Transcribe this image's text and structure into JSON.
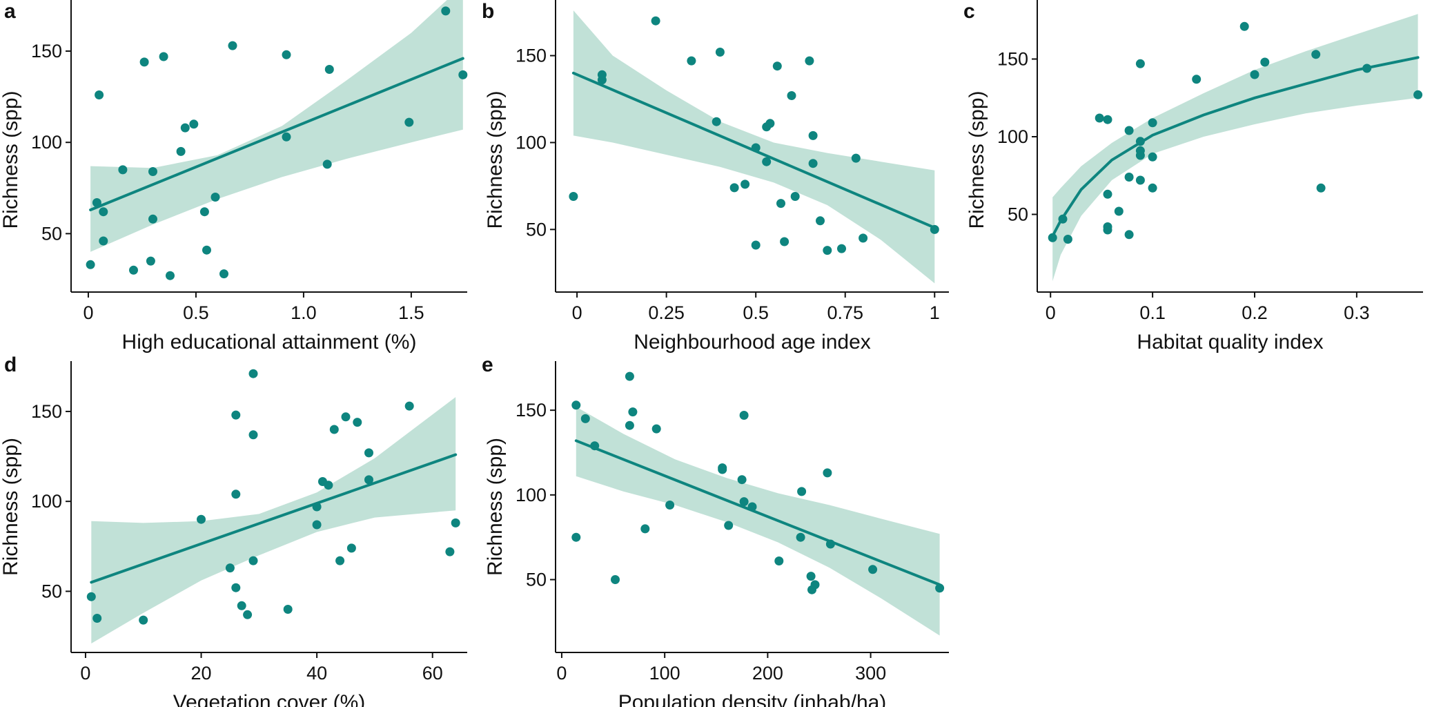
{
  "figure": {
    "point_color": "#0e857f",
    "line_color": "#0e857f",
    "band_color": "#c1e1d7"
  },
  "chart_data": [
    {
      "type": "scatter",
      "label": "a",
      "xlabel": "High educational attainment (%)",
      "ylabel": "Richness (spp)",
      "xlim": [
        -0.08,
        1.76
      ],
      "ylim": [
        18,
        178
      ],
      "xticks": [
        0,
        0.5,
        1.0,
        1.5
      ],
      "xtick_labels": [
        "0",
        "0.5",
        "1.0",
        "1.5"
      ],
      "yticks": [
        50,
        100,
        150
      ],
      "ytick_labels": [
        "50",
        "100",
        "150"
      ],
      "points": [
        [
          0.01,
          33
        ],
        [
          0.04,
          67
        ],
        [
          0.05,
          126
        ],
        [
          0.07,
          62
        ],
        [
          0.07,
          46
        ],
        [
          0.16,
          85
        ],
        [
          0.21,
          30
        ],
        [
          0.26,
          144
        ],
        [
          0.29,
          35
        ],
        [
          0.3,
          84
        ],
        [
          0.3,
          58
        ],
        [
          0.35,
          147
        ],
        [
          0.38,
          27
        ],
        [
          0.43,
          95
        ],
        [
          0.45,
          108
        ],
        [
          0.49,
          110
        ],
        [
          0.54,
          62
        ],
        [
          0.55,
          41
        ],
        [
          0.59,
          70
        ],
        [
          0.63,
          28
        ],
        [
          0.67,
          153
        ],
        [
          0.92,
          148
        ],
        [
          0.92,
          103
        ],
        [
          1.11,
          88
        ],
        [
          1.12,
          140
        ],
        [
          1.49,
          111
        ],
        [
          1.66,
          172
        ],
        [
          1.74,
          137
        ]
      ],
      "fit": {
        "kind": "linear",
        "x": [
          0.01,
          1.74
        ],
        "y": [
          63,
          146
        ]
      },
      "band": {
        "x": [
          0.01,
          0.3,
          0.6,
          0.9,
          1.2,
          1.5,
          1.74
        ],
        "lower": [
          40,
          55,
          69,
          81,
          91,
          100,
          107
        ],
        "upper": [
          87,
          86,
          93,
          109,
          134,
          160,
          186
        ]
      }
    },
    {
      "type": "scatter",
      "label": "b",
      "xlabel": "Neighbourhood age index",
      "ylabel": "Richness (spp)",
      "xlim": [
        -0.06,
        1.04
      ],
      "ylim": [
        14,
        182
      ],
      "xticks": [
        0,
        0.25,
        0.5,
        0.75,
        1
      ],
      "xtick_labels": [
        "0",
        "0.25",
        "0.5",
        "0.75",
        "1"
      ],
      "yticks": [
        50,
        100,
        150
      ],
      "ytick_labels": [
        "50",
        "100",
        "150"
      ],
      "points": [
        [
          -0.01,
          69
        ],
        [
          0.07,
          136
        ],
        [
          0.07,
          139
        ],
        [
          0.22,
          170
        ],
        [
          0.32,
          147
        ],
        [
          0.39,
          112
        ],
        [
          0.4,
          152
        ],
        [
          0.44,
          74
        ],
        [
          0.47,
          76
        ],
        [
          0.5,
          41
        ],
        [
          0.5,
          97
        ],
        [
          0.53,
          89
        ],
        [
          0.53,
          109
        ],
        [
          0.54,
          111
        ],
        [
          0.56,
          144
        ],
        [
          0.57,
          65
        ],
        [
          0.58,
          43
        ],
        [
          0.6,
          127
        ],
        [
          0.61,
          69
        ],
        [
          0.65,
          147
        ],
        [
          0.66,
          88
        ],
        [
          0.66,
          104
        ],
        [
          0.68,
          55
        ],
        [
          0.7,
          38
        ],
        [
          0.74,
          39
        ],
        [
          0.78,
          91
        ],
        [
          0.8,
          45
        ],
        [
          1.0,
          50
        ]
      ],
      "fit": {
        "kind": "linear",
        "x": [
          -0.01,
          1.0
        ],
        "y": [
          140,
          51
        ]
      },
      "band": {
        "x": [
          -0.01,
          0.1,
          0.25,
          0.4,
          0.55,
          0.7,
          0.85,
          1.0
        ],
        "lower": [
          104,
          100,
          93,
          86,
          77,
          64,
          44,
          19
        ],
        "upper": [
          176,
          150,
          130,
          112,
          100,
          94,
          89,
          84
        ]
      }
    },
    {
      "type": "scatter",
      "label": "c",
      "xlabel": "Habitat quality index",
      "ylabel": "Richness (spp)",
      "xlim": [
        -0.013,
        0.365
      ],
      "ylim": [
        0,
        188
      ],
      "xticks": [
        0,
        0.1,
        0.2,
        0.3
      ],
      "xtick_labels": [
        "0",
        "0.1",
        "0.2",
        "0.3"
      ],
      "yticks": [
        50,
        100,
        150
      ],
      "ytick_labels": [
        "50",
        "100",
        "150"
      ],
      "points": [
        [
          0.002,
          35
        ],
        [
          0.012,
          47
        ],
        [
          0.017,
          34
        ],
        [
          0.048,
          112
        ],
        [
          0.056,
          111
        ],
        [
          0.056,
          63
        ],
        [
          0.056,
          40
        ],
        [
          0.056,
          42
        ],
        [
          0.067,
          52
        ],
        [
          0.077,
          104
        ],
        [
          0.077,
          37
        ],
        [
          0.077,
          74
        ],
        [
          0.088,
          147
        ],
        [
          0.088,
          97
        ],
        [
          0.088,
          91
        ],
        [
          0.088,
          88
        ],
        [
          0.088,
          72
        ],
        [
          0.1,
          109
        ],
        [
          0.1,
          87
        ],
        [
          0.1,
          67
        ],
        [
          0.143,
          137
        ],
        [
          0.19,
          171
        ],
        [
          0.2,
          140
        ],
        [
          0.21,
          148
        ],
        [
          0.265,
          67
        ],
        [
          0.26,
          153
        ],
        [
          0.31,
          144
        ],
        [
          0.36,
          127
        ]
      ],
      "fit": {
        "kind": "log",
        "x": [
          0.002,
          0.01,
          0.03,
          0.06,
          0.1,
          0.15,
          0.2,
          0.25,
          0.3,
          0.36
        ],
        "y": [
          36,
          46,
          66,
          85,
          101,
          114,
          125,
          134,
          143,
          151
        ]
      },
      "band": {
        "x": [
          0.002,
          0.01,
          0.03,
          0.06,
          0.1,
          0.15,
          0.2,
          0.25,
          0.3,
          0.36
        ],
        "lower": [
          7,
          24,
          49,
          72,
          89,
          100,
          108,
          115,
          120,
          125
        ],
        "upper": [
          61,
          67,
          81,
          96,
          112,
          128,
          143,
          155,
          166,
          179
        ]
      }
    },
    {
      "type": "scatter",
      "label": "d",
      "xlabel": "Vegetation cover (%)",
      "ylabel": "Richness (spp)",
      "xlim": [
        -2.5,
        66
      ],
      "ylim": [
        16,
        178
      ],
      "xticks": [
        0,
        20,
        40,
        60
      ],
      "xtick_labels": [
        "0",
        "20",
        "40",
        "60"
      ],
      "yticks": [
        50,
        100,
        150
      ],
      "ytick_labels": [
        "50",
        "100",
        "150"
      ],
      "points": [
        [
          1,
          47
        ],
        [
          2,
          35
        ],
        [
          10,
          34
        ],
        [
          20,
          90
        ],
        [
          25,
          63
        ],
        [
          26,
          148
        ],
        [
          26,
          104
        ],
        [
          26,
          52
        ],
        [
          27,
          42
        ],
        [
          28,
          37
        ],
        [
          29,
          137
        ],
        [
          29,
          67
        ],
        [
          29,
          171
        ],
        [
          35,
          40
        ],
        [
          40,
          97
        ],
        [
          40,
          87
        ],
        [
          41,
          111
        ],
        [
          42,
          109
        ],
        [
          43,
          140
        ],
        [
          44,
          67
        ],
        [
          45,
          147
        ],
        [
          46,
          74
        ],
        [
          47,
          144
        ],
        [
          49,
          127
        ],
        [
          49,
          112
        ],
        [
          56,
          153
        ],
        [
          63,
          72
        ],
        [
          64,
          88
        ]
      ],
      "fit": {
        "kind": "linear",
        "x": [
          1,
          64
        ],
        "y": [
          55,
          126
        ]
      },
      "band": {
        "x": [
          1,
          10,
          20,
          30,
          40,
          50,
          64
        ],
        "lower": [
          21,
          38,
          56,
          70,
          83,
          91,
          95
        ],
        "upper": [
          89,
          88,
          89,
          93,
          105,
          124,
          158
        ]
      }
    },
    {
      "type": "scatter",
      "label": "e",
      "xlabel": "Population density (inhab/ha)",
      "ylabel": "Richness (spp)",
      "xlim": [
        -6,
        376
      ],
      "ylim": [
        7,
        179
      ],
      "xticks": [
        0,
        100,
        200,
        300
      ],
      "xtick_labels": [
        "0",
        "100",
        "200",
        "300"
      ],
      "yticks": [
        50,
        100,
        150
      ],
      "ytick_labels": [
        "50",
        "100",
        "150"
      ],
      "points": [
        [
          14,
          153
        ],
        [
          14,
          75
        ],
        [
          23,
          145
        ],
        [
          32,
          129
        ],
        [
          52,
          50
        ],
        [
          66,
          170
        ],
        [
          66,
          141
        ],
        [
          69,
          149
        ],
        [
          81,
          80
        ],
        [
          92,
          139
        ],
        [
          105,
          94
        ],
        [
          156,
          116
        ],
        [
          156,
          115
        ],
        [
          162,
          82
        ],
        [
          175,
          109
        ],
        [
          177,
          147
        ],
        [
          177,
          96
        ],
        [
          185,
          93
        ],
        [
          211,
          61
        ],
        [
          232,
          75
        ],
        [
          233,
          102
        ],
        [
          242,
          52
        ],
        [
          243,
          44
        ],
        [
          246,
          47
        ],
        [
          258,
          113
        ],
        [
          261,
          71
        ],
        [
          302,
          56
        ],
        [
          367,
          45
        ]
      ],
      "fit": {
        "kind": "linear",
        "x": [
          14,
          367
        ],
        "y": [
          132,
          47
        ]
      },
      "band": {
        "x": [
          14,
          60,
          110,
          160,
          210,
          260,
          310,
          367
        ],
        "lower": [
          111,
          102,
          94,
          84,
          72,
          57,
          39,
          17
        ],
        "upper": [
          152,
          136,
          121,
          110,
          101,
          94,
          86,
          77
        ]
      }
    }
  ]
}
